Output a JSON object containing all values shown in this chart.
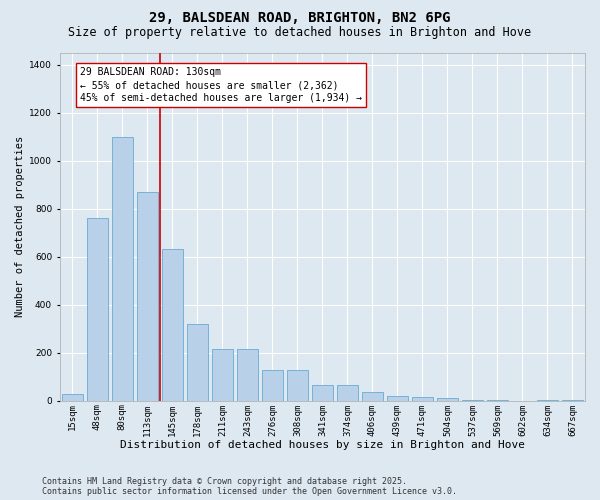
{
  "title": "29, BALSDEAN ROAD, BRIGHTON, BN2 6PG",
  "subtitle": "Size of property relative to detached houses in Brighton and Hove",
  "xlabel": "Distribution of detached houses by size in Brighton and Hove",
  "ylabel": "Number of detached properties",
  "categories": [
    "15sqm",
    "48sqm",
    "80sqm",
    "113sqm",
    "145sqm",
    "178sqm",
    "211sqm",
    "243sqm",
    "276sqm",
    "308sqm",
    "341sqm",
    "374sqm",
    "406sqm",
    "439sqm",
    "471sqm",
    "504sqm",
    "537sqm",
    "569sqm",
    "602sqm",
    "634sqm",
    "667sqm"
  ],
  "values": [
    30,
    760,
    1100,
    870,
    630,
    320,
    215,
    215,
    130,
    130,
    65,
    65,
    35,
    20,
    15,
    12,
    5,
    3,
    0,
    3,
    5
  ],
  "bar_color": "#b8d0e8",
  "bar_edge_color": "#6aaad4",
  "vline_x": 3.5,
  "vline_color": "#cc0000",
  "annotation_text": "29 BALSDEAN ROAD: 130sqm\n← 55% of detached houses are smaller (2,362)\n45% of semi-detached houses are larger (1,934) →",
  "annotation_box_facecolor": "#ffffff",
  "annotation_box_edgecolor": "#cc0000",
  "ylim": [
    0,
    1450
  ],
  "yticks": [
    0,
    200,
    400,
    600,
    800,
    1000,
    1200,
    1400
  ],
  "background_color": "#dde8f0",
  "grid_color": "#ffffff",
  "footer": "Contains HM Land Registry data © Crown copyright and database right 2025.\nContains public sector information licensed under the Open Government Licence v3.0.",
  "title_fontsize": 10,
  "subtitle_fontsize": 8.5,
  "xlabel_fontsize": 8,
  "ylabel_fontsize": 7.5,
  "tick_fontsize": 6.5,
  "annotation_fontsize": 7,
  "footer_fontsize": 6
}
